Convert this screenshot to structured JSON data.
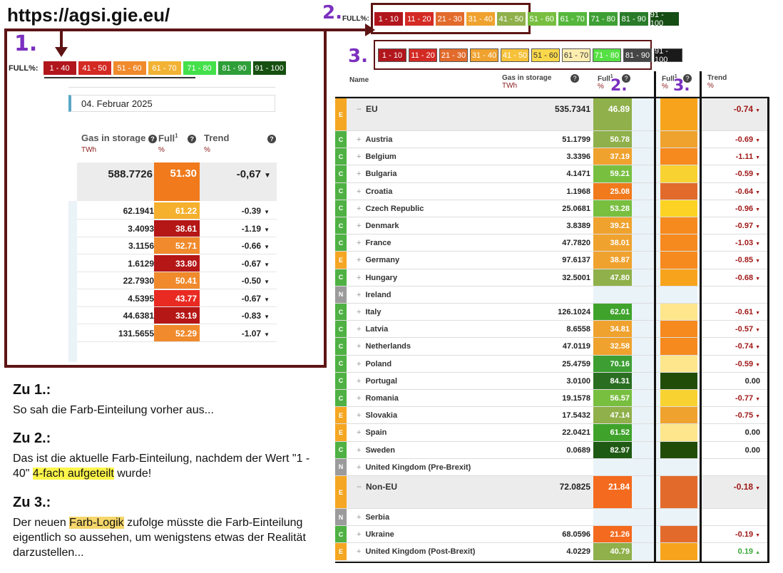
{
  "url": "https://agsi.gie.eu/",
  "marker1": "1.",
  "marker2": "2.",
  "marker3": "3.",
  "legend_old": {
    "label": "FULL%:",
    "items": [
      {
        "text": "1 - 40",
        "color": "#b1161c"
      },
      {
        "text": "41 - 50",
        "color": "#d42a24"
      },
      {
        "text": "51 - 60",
        "color": "#f08a2c"
      },
      {
        "text": "61 - 70",
        "color": "#f2b234"
      },
      {
        "text": "71 - 80",
        "color": "#43e04a"
      },
      {
        "text": "81 - 90",
        "color": "#2e9e39"
      },
      {
        "text": "91 - 100",
        "color": "#16500f"
      }
    ]
  },
  "legend_new": {
    "label": "FULL%:",
    "items": [
      {
        "text": "1 - 10",
        "color": "#b1161c"
      },
      {
        "text": "11 - 20",
        "color": "#d42a24"
      },
      {
        "text": "21 - 30",
        "color": "#e26b2c"
      },
      {
        "text": "31 - 40",
        "color": "#f0a22e"
      },
      {
        "text": "41 - 50",
        "color": "#8fb04a"
      },
      {
        "text": "51 - 60",
        "color": "#78bf40"
      },
      {
        "text": "61 - 70",
        "color": "#55b83c"
      },
      {
        "text": "71 - 80",
        "color": "#3d9f33"
      },
      {
        "text": "81 - 90",
        "color": "#2a7c2a"
      },
      {
        "text": "91 - 100",
        "color": "#154d12"
      }
    ]
  },
  "legend_proposed": {
    "items": [
      {
        "text": "1 - 10",
        "color": "#b1161c"
      },
      {
        "text": "11 - 20",
        "color": "#d42a24"
      },
      {
        "text": "21 - 30",
        "color": "#e26b2c"
      },
      {
        "text": "31 - 40",
        "color": "#f0a22e"
      },
      {
        "text": "41 - 50",
        "color": "#f7c23a"
      },
      {
        "text": "51 - 60",
        "color": "#fad84a"
      },
      {
        "text": "61 - 70",
        "color": "#fdeeb0"
      },
      {
        "text": "71 - 80",
        "color": "#55e043"
      },
      {
        "text": "81 - 90",
        "color": "#454545"
      },
      {
        "text": "91 - 100",
        "color": "#1a1a1a"
      }
    ]
  },
  "left_panel": {
    "date": "04. Februar 2025",
    "header": {
      "gas": "Gas in storage",
      "gas_unit": "TWh",
      "full": "Full",
      "full_sup": "1",
      "full_unit": "%",
      "trend": "Trend",
      "trend_unit": "%"
    },
    "summary": {
      "gas": "588.7726",
      "full": "51.30",
      "trend": "-0,67",
      "color": "#f07a1c"
    },
    "rows": [
      {
        "gas": "62.1941",
        "full": "61.22",
        "trend": "-0.39",
        "color": "#f5b02e"
      },
      {
        "gas": "3.4093",
        "full": "38.61",
        "trend": "-1.19",
        "color": "#b51616"
      },
      {
        "gas": "3.1156",
        "full": "52.71",
        "trend": "-0.66",
        "color": "#f08a2c"
      },
      {
        "gas": "1.6129",
        "full": "33.80",
        "trend": "-0.67",
        "color": "#b51616"
      },
      {
        "gas": "22.7930",
        "full": "50.41",
        "trend": "-0.50",
        "color": "#f08a2c"
      },
      {
        "gas": "4.5395",
        "full": "43.77",
        "trend": "-0.67",
        "color": "#e82a22"
      },
      {
        "gas": "44.6381",
        "full": "33.19",
        "trend": "-0.83",
        "color": "#b51616"
      },
      {
        "gas": "131.5655",
        "full": "52.29",
        "trend": "-1.07",
        "color": "#f08a2c"
      }
    ]
  },
  "right_table": {
    "header": {
      "name": "Name",
      "gas": "Gas in storage",
      "gas_unit": "TWh",
      "full": "Full",
      "full_sup": "1",
      "full_unit": "%",
      "trend": "Trend",
      "trend_unit": "%"
    },
    "rows": [
      {
        "cat": "E",
        "name": "EU",
        "gas": "535.7341",
        "full": "46.89",
        "fc": "#8fb04a",
        "nc": "#f7a41c",
        "trend": "-0.74",
        "dir": "down",
        "big": true,
        "prefix": "−"
      },
      {
        "cat": "C",
        "name": "Austria",
        "gas": "51.1799",
        "full": "50.78",
        "fc": "#8fb04a",
        "nc": "#f0a22e",
        "trend": "-0.69",
        "dir": "down",
        "prefix": "+"
      },
      {
        "cat": "C",
        "name": "Belgium",
        "gas": "3.3396",
        "full": "37.19",
        "fc": "#f0a22e",
        "nc": "#f68a1e",
        "trend": "-1.11",
        "dir": "down",
        "prefix": "+"
      },
      {
        "cat": "C",
        "name": "Bulgaria",
        "gas": "4.1471",
        "full": "59.21",
        "fc": "#78bf40",
        "nc": "#f8d230",
        "trend": "-0.59",
        "dir": "down",
        "prefix": "+"
      },
      {
        "cat": "C",
        "name": "Croatia",
        "gas": "1.1968",
        "full": "25.08",
        "fc": "#f07a1c",
        "nc": "#e26b2c",
        "trend": "-0.64",
        "dir": "down",
        "prefix": "+"
      },
      {
        "cat": "C",
        "name": "Czech Republic",
        "gas": "25.0681",
        "full": "53.28",
        "fc": "#78bf40",
        "nc": "#fcd324",
        "trend": "-0.96",
        "dir": "down",
        "prefix": "+"
      },
      {
        "cat": "C",
        "name": "Denmark",
        "gas": "3.8389",
        "full": "39.21",
        "fc": "#f0a22e",
        "nc": "#f68a1e",
        "trend": "-0.97",
        "dir": "down",
        "prefix": "+"
      },
      {
        "cat": "C",
        "name": "France",
        "gas": "47.7820",
        "full": "38.01",
        "fc": "#f0a22e",
        "nc": "#f68a1e",
        "trend": "-1.03",
        "dir": "down",
        "prefix": "+"
      },
      {
        "cat": "E",
        "name": "Germany",
        "gas": "97.6137",
        "full": "38.87",
        "fc": "#f0a22e",
        "nc": "#f68a1e",
        "trend": "-0.85",
        "dir": "down",
        "prefix": "+"
      },
      {
        "cat": "C",
        "name": "Hungary",
        "gas": "32.5001",
        "full": "47.80",
        "fc": "#8fb04a",
        "nc": "#f7a41c",
        "trend": "-0.68",
        "dir": "down",
        "prefix": "+"
      },
      {
        "cat": "N",
        "name": "Ireland",
        "gas": "",
        "full": "",
        "fc": "#eaf3f8",
        "nc": "#eaf3f8",
        "trend": "",
        "dir": "",
        "prefix": "+"
      },
      {
        "cat": "C",
        "name": "Italy",
        "gas": "126.1024",
        "full": "62.01",
        "fc": "#3fa32b",
        "nc": "#fde68c",
        "trend": "-0.61",
        "dir": "down",
        "prefix": "+"
      },
      {
        "cat": "C",
        "name": "Latvia",
        "gas": "8.6558",
        "full": "34.81",
        "fc": "#f0a22e",
        "nc": "#f68a1e",
        "trend": "-0.57",
        "dir": "down",
        "prefix": "+"
      },
      {
        "cat": "C",
        "name": "Netherlands",
        "gas": "47.0119",
        "full": "32.58",
        "fc": "#f0a22e",
        "nc": "#f68a1e",
        "trend": "-0.74",
        "dir": "down",
        "prefix": "+"
      },
      {
        "cat": "C",
        "name": "Poland",
        "gas": "25.4759",
        "full": "70.16",
        "fc": "#3d9f33",
        "nc": "#fde68c",
        "trend": "-0.59",
        "dir": "down",
        "prefix": "+"
      },
      {
        "cat": "C",
        "name": "Portugal",
        "gas": "3.0100",
        "full": "84.31",
        "fc": "#2a6e22",
        "nc": "#214c08",
        "trend": "0.00",
        "dir": "",
        "prefix": "+"
      },
      {
        "cat": "C",
        "name": "Romania",
        "gas": "19.1578",
        "full": "56.57",
        "fc": "#78bf40",
        "nc": "#f8d230",
        "trend": "-0.77",
        "dir": "down",
        "prefix": "+"
      },
      {
        "cat": "E",
        "name": "Slovakia",
        "gas": "17.5432",
        "full": "47.14",
        "fc": "#8fb04a",
        "nc": "#f0a22e",
        "trend": "-0.75",
        "dir": "down",
        "prefix": "+"
      },
      {
        "cat": "E",
        "name": "Spain",
        "gas": "22.0421",
        "full": "61.52",
        "fc": "#3fa32b",
        "nc": "#fde68c",
        "trend": "0.00",
        "dir": "",
        "prefix": "+"
      },
      {
        "cat": "C",
        "name": "Sweden",
        "gas": "0.0689",
        "full": "82.97",
        "fc": "#1f5a14",
        "nc": "#214c08",
        "trend": "0.00",
        "dir": "",
        "prefix": "+"
      },
      {
        "cat": "N",
        "name": "United Kingdom (Pre-Brexit)",
        "gas": "",
        "full": "",
        "fc": "#eaf3f8",
        "nc": "#eaf3f8",
        "trend": "",
        "dir": "",
        "prefix": "+"
      },
      {
        "cat": "E",
        "name": "Non-EU",
        "gas": "72.0825",
        "full": "21.84",
        "fc": "#f46a1e",
        "nc": "#e26b2c",
        "trend": "-0.18",
        "dir": "down",
        "big": true,
        "prefix": "−"
      },
      {
        "cat": "N",
        "name": "Serbia",
        "gas": "",
        "full": "",
        "fc": "#eaf3f8",
        "nc": "#eaf3f8",
        "trend": "",
        "dir": "",
        "prefix": "+"
      },
      {
        "cat": "C",
        "name": "Ukraine",
        "gas": "68.0596",
        "full": "21.26",
        "fc": "#f46a1e",
        "nc": "#e26b2c",
        "trend": "-0.19",
        "dir": "down",
        "prefix": "+"
      },
      {
        "cat": "E",
        "name": "United Kingdom (Post-Brexit)",
        "gas": "4.0229",
        "full": "40.79",
        "fc": "#8fb04a",
        "nc": "#f7a41c",
        "trend": "0.19",
        "dir": "up",
        "prefix": "+"
      }
    ]
  },
  "cat_colors": {
    "C": "#4fb143",
    "E": "#f5a623",
    "N": "#9b9b9b"
  },
  "notes": {
    "n1_title": "Zu 1.:",
    "n1_text": "So sah die Farb-Einteilung vorher aus...",
    "n2_title": "Zu 2.:",
    "n2_a": "Das ist die aktuelle Farb-Einteilung, nachdem der Wert \"1 - 40\" ",
    "n2_hl": "4-fach aufgeteilt",
    "n2_b": " wurde!",
    "n3_title": "Zu 3.:",
    "n3_a": "Der neuen ",
    "n3_hl": "Farb-Logik",
    "n3_b": " zufolge müsste die Farb-Einteilung eigentlich so aussehen, um wenigstens etwas der Realität darzustellen..."
  }
}
